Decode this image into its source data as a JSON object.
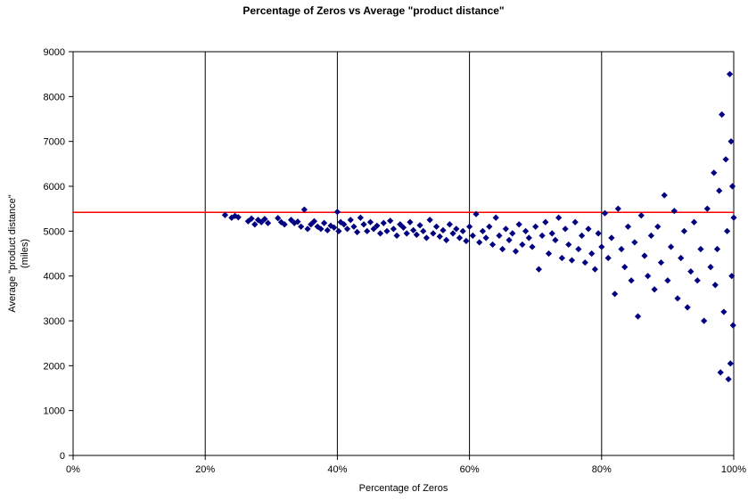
{
  "chart_data": {
    "type": "scatter",
    "title": "Percentage of Zeros vs Average \"product distance\"",
    "xlabel": "Percentage of Zeros",
    "ylabel_lines": [
      "Average \"product distance\"",
      "(miles)"
    ],
    "xlim": [
      0,
      1
    ],
    "ylim": [
      0,
      9000
    ],
    "x_ticks": [
      0,
      0.2,
      0.4,
      0.6,
      0.8,
      1.0
    ],
    "x_tick_labels": [
      "0%",
      "20%",
      "40%",
      "60%",
      "80%",
      "100%"
    ],
    "y_ticks": [
      0,
      1000,
      2000,
      3000,
      4000,
      5000,
      6000,
      7000,
      8000,
      9000
    ],
    "y_tick_labels": [
      "0",
      "1000",
      "2000",
      "3000",
      "4000",
      "5000",
      "6000",
      "7000",
      "8000",
      "9000"
    ],
    "vertical_gridlines": true,
    "horizontal_gridlines": false,
    "marker": "diamond",
    "marker_color": "#000080",
    "reference_line": {
      "y": 5420,
      "color": "#ff0000"
    },
    "series": [
      {
        "values": [
          [
            0.23,
            5360
          ],
          [
            0.24,
            5300
          ],
          [
            0.245,
            5340
          ],
          [
            0.25,
            5310
          ],
          [
            0.265,
            5220
          ],
          [
            0.27,
            5280
          ],
          [
            0.275,
            5150
          ],
          [
            0.28,
            5250
          ],
          [
            0.285,
            5200
          ],
          [
            0.29,
            5270
          ],
          [
            0.295,
            5180
          ],
          [
            0.31,
            5290
          ],
          [
            0.315,
            5200
          ],
          [
            0.32,
            5150
          ],
          [
            0.33,
            5250
          ],
          [
            0.335,
            5180
          ],
          [
            0.34,
            5210
          ],
          [
            0.345,
            5100
          ],
          [
            0.35,
            5480
          ],
          [
            0.355,
            5050
          ],
          [
            0.36,
            5150
          ],
          [
            0.365,
            5220
          ],
          [
            0.37,
            5100
          ],
          [
            0.375,
            5050
          ],
          [
            0.38,
            5180
          ],
          [
            0.385,
            5020
          ],
          [
            0.39,
            5120
          ],
          [
            0.395,
            5080
          ],
          [
            0.4,
            5430
          ],
          [
            0.402,
            5000
          ],
          [
            0.405,
            5200
          ],
          [
            0.41,
            5150
          ],
          [
            0.415,
            5050
          ],
          [
            0.42,
            5250
          ],
          [
            0.425,
            5100
          ],
          [
            0.43,
            4980
          ],
          [
            0.435,
            5300
          ],
          [
            0.44,
            5150
          ],
          [
            0.445,
            5000
          ],
          [
            0.45,
            5200
          ],
          [
            0.455,
            5050
          ],
          [
            0.46,
            5120
          ],
          [
            0.465,
            4950
          ],
          [
            0.47,
            5180
          ],
          [
            0.475,
            5000
          ],
          [
            0.48,
            5230
          ],
          [
            0.485,
            5050
          ],
          [
            0.49,
            4900
          ],
          [
            0.495,
            5150
          ],
          [
            0.5,
            5080
          ],
          [
            0.505,
            4950
          ],
          [
            0.51,
            5200
          ],
          [
            0.515,
            5020
          ],
          [
            0.52,
            4920
          ],
          [
            0.525,
            5130
          ],
          [
            0.53,
            5000
          ],
          [
            0.535,
            4850
          ],
          [
            0.54,
            5250
          ],
          [
            0.545,
            4950
          ],
          [
            0.55,
            5100
          ],
          [
            0.555,
            4880
          ],
          [
            0.56,
            5020
          ],
          [
            0.565,
            4800
          ],
          [
            0.57,
            5150
          ],
          [
            0.575,
            4950
          ],
          [
            0.58,
            5050
          ],
          [
            0.585,
            4850
          ],
          [
            0.59,
            5000
          ],
          [
            0.595,
            4780
          ],
          [
            0.6,
            5100
          ],
          [
            0.605,
            4900
          ],
          [
            0.61,
            5380
          ],
          [
            0.615,
            4750
          ],
          [
            0.62,
            5000
          ],
          [
            0.625,
            4850
          ],
          [
            0.63,
            5100
          ],
          [
            0.635,
            4700
          ],
          [
            0.64,
            5300
          ],
          [
            0.645,
            4900
          ],
          [
            0.65,
            4600
          ],
          [
            0.655,
            5050
          ],
          [
            0.66,
            4800
          ],
          [
            0.665,
            4950
          ],
          [
            0.67,
            4550
          ],
          [
            0.675,
            5150
          ],
          [
            0.68,
            4700
          ],
          [
            0.685,
            5000
          ],
          [
            0.69,
            4850
          ],
          [
            0.695,
            4650
          ],
          [
            0.7,
            5100
          ],
          [
            0.705,
            4150
          ],
          [
            0.71,
            4900
          ],
          [
            0.715,
            5200
          ],
          [
            0.72,
            4500
          ],
          [
            0.725,
            4950
          ],
          [
            0.73,
            4800
          ],
          [
            0.735,
            5300
          ],
          [
            0.74,
            4400
          ],
          [
            0.745,
            5050
          ],
          [
            0.75,
            4700
          ],
          [
            0.755,
            4350
          ],
          [
            0.76,
            5200
          ],
          [
            0.765,
            4600
          ],
          [
            0.77,
            4900
          ],
          [
            0.775,
            4300
          ],
          [
            0.78,
            5050
          ],
          [
            0.785,
            4500
          ],
          [
            0.79,
            4150
          ],
          [
            0.795,
            4950
          ],
          [
            0.8,
            4650
          ],
          [
            0.805,
            5400
          ],
          [
            0.81,
            4400
          ],
          [
            0.815,
            4850
          ],
          [
            0.82,
            3600
          ],
          [
            0.825,
            5500
          ],
          [
            0.83,
            4600
          ],
          [
            0.835,
            4200
          ],
          [
            0.84,
            5100
          ],
          [
            0.845,
            3900
          ],
          [
            0.85,
            4750
          ],
          [
            0.855,
            3100
          ],
          [
            0.86,
            5350
          ],
          [
            0.865,
            4450
          ],
          [
            0.87,
            4000
          ],
          [
            0.875,
            4900
          ],
          [
            0.88,
            3700
          ],
          [
            0.885,
            5100
          ],
          [
            0.89,
            4300
          ],
          [
            0.895,
            5800
          ],
          [
            0.9,
            3900
          ],
          [
            0.905,
            4650
          ],
          [
            0.91,
            5450
          ],
          [
            0.915,
            3500
          ],
          [
            0.92,
            4400
          ],
          [
            0.925,
            5000
          ],
          [
            0.93,
            3300
          ],
          [
            0.935,
            4100
          ],
          [
            0.94,
            5200
          ],
          [
            0.945,
            3900
          ],
          [
            0.95,
            4600
          ],
          [
            0.955,
            3000
          ],
          [
            0.96,
            5500
          ],
          [
            0.965,
            4200
          ],
          [
            0.97,
            6300
          ],
          [
            0.972,
            3800
          ],
          [
            0.975,
            4600
          ],
          [
            0.978,
            5900
          ],
          [
            0.98,
            1850
          ],
          [
            0.982,
            7600
          ],
          [
            0.985,
            3200
          ],
          [
            0.988,
            6600
          ],
          [
            0.99,
            5000
          ],
          [
            0.992,
            1700
          ],
          [
            0.994,
            8500
          ],
          [
            0.995,
            2050
          ],
          [
            0.996,
            7000
          ],
          [
            0.997,
            4000
          ],
          [
            0.998,
            6000
          ],
          [
            0.999,
            2900
          ],
          [
            1.0,
            5300
          ]
        ]
      }
    ]
  }
}
